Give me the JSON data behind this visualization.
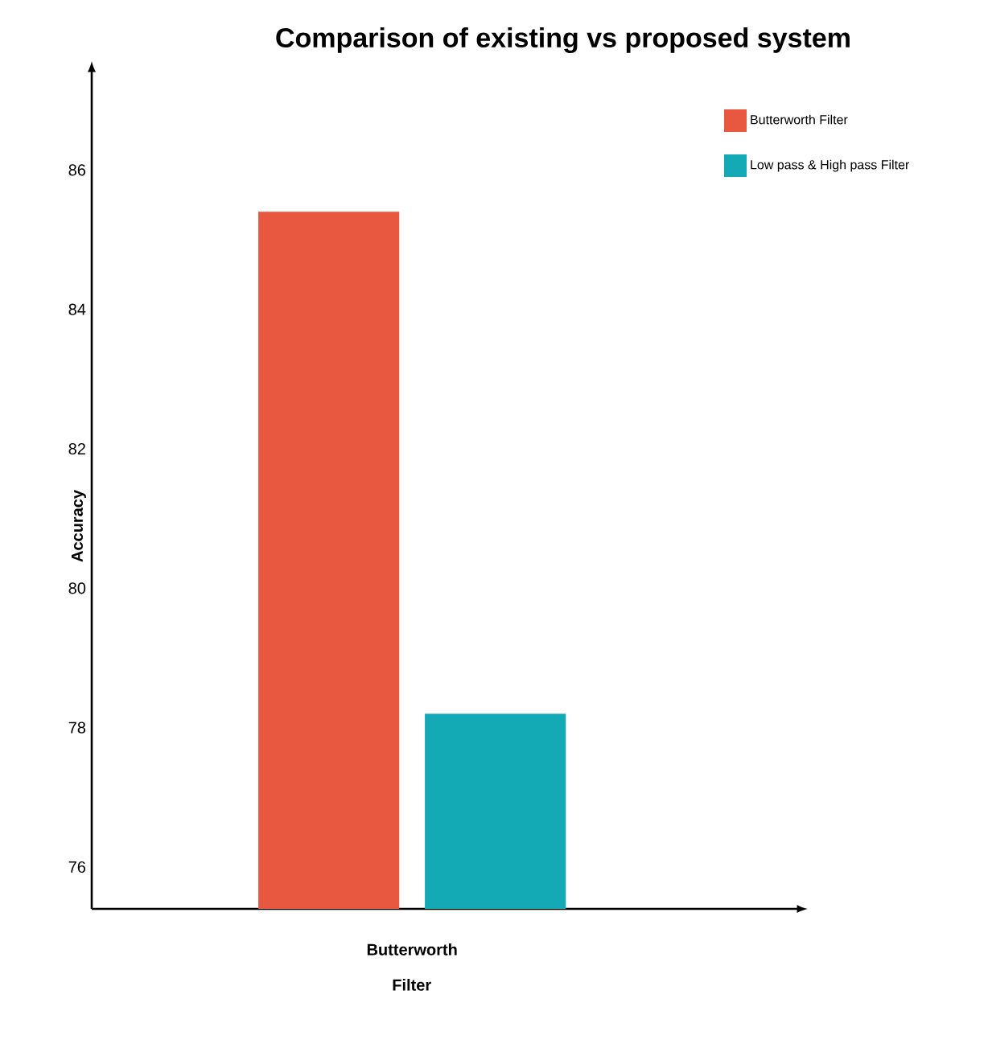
{
  "chart_data": {
    "type": "bar",
    "title": "Comparison of existing vs proposed system",
    "xlabel": "Filter",
    "ylabel": "Accuracy",
    "categories": [
      "Butterworth"
    ],
    "series": [
      {
        "name": "Butterworth Filter",
        "color": "#e8573f",
        "values": [
          85.4
        ]
      },
      {
        "name": "Low pass & High pass Filter",
        "color": "#13a9b5",
        "values": [
          78.2
        ]
      }
    ],
    "ylim": [
      75.4,
      87.4
    ],
    "yticks": [
      76,
      78,
      80,
      82,
      84,
      86
    ],
    "grid": false,
    "legend": "top right"
  }
}
